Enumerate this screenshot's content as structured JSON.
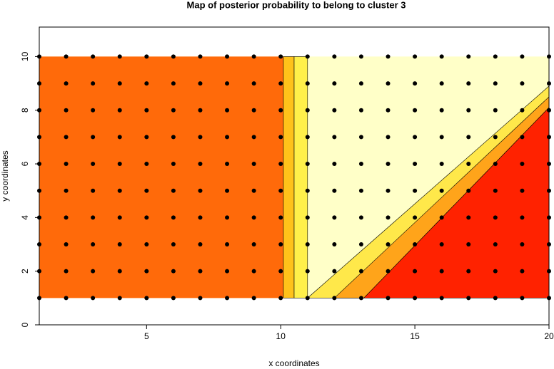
{
  "chart_data": {
    "type": "contour-map",
    "title": "Map of posterior probability to belong to cluster  3",
    "x_label": "x coordinates",
    "y_label": "y coordinates",
    "xlim": [
      1,
      20
    ],
    "ylim": [
      0,
      11.1
    ],
    "xticks": [
      5,
      10,
      15,
      20
    ],
    "yticks": [
      0,
      2,
      4,
      6,
      8,
      10
    ],
    "regions": [
      {
        "color": "#ffffc8",
        "x": [
          1,
          20,
          20,
          1
        ],
        "y": [
          1,
          1,
          10,
          10
        ]
      },
      {
        "color": "#ff6a0a",
        "x": [
          1,
          10.1,
          10.1,
          1
        ],
        "y": [
          1,
          1,
          10,
          10
        ]
      },
      {
        "color": "#ffc21a",
        "x": [
          10.1,
          10.5,
          10.5,
          10.1
        ],
        "y": [
          1,
          1,
          10,
          10
        ]
      },
      {
        "color": "#fff04a",
        "x": [
          10.5,
          11,
          11,
          10.5
        ],
        "y": [
          1,
          1,
          10,
          10
        ]
      },
      {
        "color": "#ffe84a",
        "x": [
          11,
          13.1,
          20,
          20
        ],
        "y": [
          1,
          1,
          8.1,
          8.9
        ]
      },
      {
        "color": "#ffa41a",
        "x": [
          12,
          13.1,
          20,
          20
        ],
        "y": [
          1,
          1,
          8.1,
          8.5
        ]
      },
      {
        "color": "#ff2200",
        "x": [
          13.1,
          20,
          20
        ],
        "y": [
          1,
          1,
          8.1
        ]
      }
    ],
    "point_color": "#000000",
    "x_grid": [
      1,
      2,
      3,
      4,
      5,
      6,
      7,
      8,
      9,
      10,
      11,
      12,
      13,
      14,
      15,
      16,
      17,
      18,
      19,
      20
    ],
    "y_grid": [
      1,
      2,
      3,
      4,
      5,
      6,
      7,
      8,
      9,
      10
    ]
  }
}
